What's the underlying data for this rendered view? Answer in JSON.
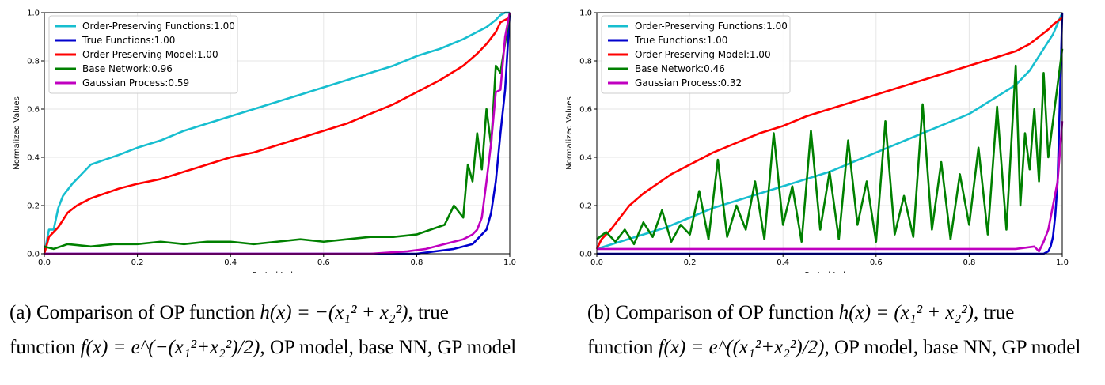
{
  "chart_data": [
    {
      "panel": "a",
      "type": "line",
      "xlabel": "Sorted Index",
      "ylabel": "Normalized Values",
      "xlim": [
        0,
        1
      ],
      "ylim": [
        0,
        1
      ],
      "xticks": [
        "0.0",
        "0.2",
        "0.4",
        "0.6",
        "0.8",
        "1.0"
      ],
      "yticks": [
        "0.0",
        "0.2",
        "0.4",
        "0.6",
        "0.8",
        "1.0"
      ],
      "grid": true,
      "legend_position": "top-left",
      "series": [
        {
          "name": "Order-Preserving Functions:1.00",
          "color": "#17becf",
          "x": [
            0,
            0.01,
            0.02,
            0.03,
            0.04,
            0.06,
            0.08,
            0.1,
            0.13,
            0.16,
            0.2,
            0.25,
            0.3,
            0.35,
            0.4,
            0.45,
            0.5,
            0.55,
            0.6,
            0.65,
            0.7,
            0.75,
            0.8,
            0.85,
            0.9,
            0.93,
            0.95,
            0.97,
            0.98,
            0.99,
            1.0
          ],
          "values": [
            0.0,
            0.1,
            0.1,
            0.19,
            0.24,
            0.29,
            0.33,
            0.37,
            0.39,
            0.41,
            0.44,
            0.47,
            0.51,
            0.54,
            0.57,
            0.6,
            0.63,
            0.66,
            0.69,
            0.72,
            0.75,
            0.78,
            0.82,
            0.85,
            0.89,
            0.92,
            0.94,
            0.97,
            0.99,
            1.0,
            1.0
          ]
        },
        {
          "name": "True Functions:1.00",
          "color": "#0000cd",
          "x": [
            0,
            0.1,
            0.3,
            0.5,
            0.7,
            0.8,
            0.88,
            0.92,
            0.95,
            0.96,
            0.97,
            0.98,
            0.99,
            1.0
          ],
          "values": [
            0.0,
            0.0,
            0.0,
            0.0,
            0.0,
            0.0,
            0.02,
            0.04,
            0.1,
            0.17,
            0.3,
            0.5,
            0.68,
            1.0
          ]
        },
        {
          "name": "Order-Preserving Model:1.00",
          "color": "#ff0000",
          "x": [
            0,
            0.01,
            0.02,
            0.03,
            0.05,
            0.07,
            0.1,
            0.13,
            0.16,
            0.2,
            0.25,
            0.3,
            0.35,
            0.4,
            0.45,
            0.5,
            0.55,
            0.6,
            0.65,
            0.7,
            0.75,
            0.8,
            0.85,
            0.9,
            0.93,
            0.95,
            0.97,
            0.98,
            1.0
          ],
          "values": [
            0.0,
            0.07,
            0.09,
            0.11,
            0.17,
            0.2,
            0.23,
            0.25,
            0.27,
            0.29,
            0.31,
            0.34,
            0.37,
            0.4,
            0.42,
            0.45,
            0.48,
            0.51,
            0.54,
            0.58,
            0.62,
            0.67,
            0.72,
            0.78,
            0.83,
            0.87,
            0.92,
            0.96,
            0.98
          ]
        },
        {
          "name": "Base Network:0.96",
          "color": "#008000",
          "x": [
            0,
            0.02,
            0.05,
            0.1,
            0.15,
            0.2,
            0.25,
            0.3,
            0.35,
            0.4,
            0.45,
            0.5,
            0.55,
            0.6,
            0.65,
            0.7,
            0.75,
            0.8,
            0.83,
            0.86,
            0.88,
            0.9,
            0.91,
            0.92,
            0.93,
            0.94,
            0.95,
            0.96,
            0.97,
            0.98,
            1.0
          ],
          "values": [
            0.03,
            0.02,
            0.04,
            0.03,
            0.04,
            0.04,
            0.05,
            0.04,
            0.05,
            0.05,
            0.04,
            0.05,
            0.06,
            0.05,
            0.06,
            0.07,
            0.07,
            0.08,
            0.1,
            0.12,
            0.2,
            0.15,
            0.37,
            0.3,
            0.5,
            0.35,
            0.6,
            0.45,
            0.78,
            0.75,
            1.0
          ]
        },
        {
          "name": "Gaussian Process:0.59",
          "color": "#c000c0",
          "x": [
            0,
            0.2,
            0.4,
            0.6,
            0.7,
            0.78,
            0.82,
            0.86,
            0.9,
            0.92,
            0.93,
            0.94,
            0.95,
            0.96,
            0.97,
            0.98,
            0.99,
            1.0
          ],
          "values": [
            0.0,
            0.0,
            0.0,
            0.0,
            0.0,
            0.01,
            0.02,
            0.04,
            0.06,
            0.08,
            0.1,
            0.15,
            0.3,
            0.46,
            0.67,
            0.68,
            0.9,
            1.0
          ]
        }
      ]
    },
    {
      "panel": "b",
      "type": "line",
      "xlabel": "Sorted Index",
      "ylabel": "Normalized Values",
      "xlim": [
        0,
        1
      ],
      "ylim": [
        0,
        1
      ],
      "xticks": [
        "0.0",
        "0.2",
        "0.4",
        "0.6",
        "0.8",
        "1.0"
      ],
      "yticks": [
        "0.0",
        "0.2",
        "0.4",
        "0.6",
        "0.8",
        "1.0"
      ],
      "grid": true,
      "legend_position": "top-left",
      "series": [
        {
          "name": "Order-Preserving Functions:1.00",
          "color": "#17becf",
          "x": [
            0,
            0.05,
            0.1,
            0.15,
            0.2,
            0.25,
            0.3,
            0.35,
            0.4,
            0.45,
            0.5,
            0.55,
            0.6,
            0.65,
            0.7,
            0.75,
            0.8,
            0.85,
            0.9,
            0.93,
            0.95,
            0.97,
            0.98,
            1.0
          ],
          "values": [
            0.02,
            0.05,
            0.08,
            0.11,
            0.15,
            0.19,
            0.22,
            0.25,
            0.28,
            0.31,
            0.34,
            0.38,
            0.42,
            0.46,
            0.5,
            0.54,
            0.58,
            0.64,
            0.7,
            0.76,
            0.82,
            0.88,
            0.91,
            1.0
          ]
        },
        {
          "name": "True Functions:1.00",
          "color": "#0000cd",
          "x": [
            0,
            0.2,
            0.4,
            0.6,
            0.8,
            0.9,
            0.95,
            0.96,
            0.97,
            0.975,
            0.98,
            0.985,
            0.99,
            1.0
          ],
          "values": [
            0.0,
            0.0,
            0.0,
            0.0,
            0.0,
            0.0,
            0.0,
            0.0,
            0.01,
            0.03,
            0.07,
            0.16,
            0.3,
            1.0
          ]
        },
        {
          "name": "Order-Preserving Model:1.00",
          "color": "#ff0000",
          "x": [
            0,
            0.01,
            0.02,
            0.03,
            0.05,
            0.07,
            0.1,
            0.13,
            0.16,
            0.2,
            0.25,
            0.3,
            0.35,
            0.4,
            0.45,
            0.5,
            0.55,
            0.6,
            0.65,
            0.7,
            0.75,
            0.8,
            0.85,
            0.9,
            0.93,
            0.95,
            0.97,
            0.98,
            1.0
          ],
          "values": [
            0.02,
            0.06,
            0.08,
            0.1,
            0.15,
            0.2,
            0.25,
            0.29,
            0.33,
            0.37,
            0.42,
            0.46,
            0.5,
            0.53,
            0.57,
            0.6,
            0.63,
            0.66,
            0.69,
            0.72,
            0.75,
            0.78,
            0.81,
            0.84,
            0.87,
            0.9,
            0.93,
            0.95,
            0.98
          ]
        },
        {
          "name": "Base Network:0.46",
          "color": "#008000",
          "x": [
            0,
            0.02,
            0.04,
            0.06,
            0.08,
            0.1,
            0.12,
            0.14,
            0.16,
            0.18,
            0.2,
            0.22,
            0.24,
            0.26,
            0.28,
            0.3,
            0.32,
            0.34,
            0.36,
            0.38,
            0.4,
            0.42,
            0.44,
            0.46,
            0.48,
            0.5,
            0.52,
            0.54,
            0.56,
            0.58,
            0.6,
            0.62,
            0.64,
            0.66,
            0.68,
            0.7,
            0.72,
            0.74,
            0.76,
            0.78,
            0.8,
            0.82,
            0.84,
            0.86,
            0.88,
            0.9,
            0.91,
            0.92,
            0.93,
            0.94,
            0.95,
            0.96,
            0.97,
            0.98,
            1.0
          ],
          "values": [
            0.06,
            0.09,
            0.05,
            0.1,
            0.04,
            0.13,
            0.07,
            0.18,
            0.05,
            0.12,
            0.08,
            0.26,
            0.06,
            0.39,
            0.07,
            0.2,
            0.1,
            0.3,
            0.06,
            0.5,
            0.12,
            0.28,
            0.05,
            0.51,
            0.1,
            0.34,
            0.06,
            0.47,
            0.12,
            0.3,
            0.05,
            0.55,
            0.08,
            0.24,
            0.07,
            0.62,
            0.1,
            0.38,
            0.06,
            0.33,
            0.12,
            0.44,
            0.08,
            0.61,
            0.1,
            0.78,
            0.2,
            0.5,
            0.35,
            0.6,
            0.3,
            0.75,
            0.4,
            0.55,
            0.85
          ]
        },
        {
          "name": "Gaussian Process:0.32",
          "color": "#c000c0",
          "x": [
            0,
            0.1,
            0.2,
            0.3,
            0.4,
            0.5,
            0.6,
            0.7,
            0.8,
            0.9,
            0.94,
            0.95,
            0.96,
            0.97,
            0.98,
            0.99,
            1.0
          ],
          "values": [
            0.02,
            0.02,
            0.02,
            0.02,
            0.02,
            0.02,
            0.02,
            0.02,
            0.02,
            0.02,
            0.03,
            0.01,
            0.05,
            0.1,
            0.2,
            0.3,
            0.55
          ]
        }
      ]
    }
  ],
  "captions": {
    "a": {
      "line1_prefix": "(a) Comparison of OP function ",
      "line1_math": "h(x) = −(x₁² + x₂²)",
      "line1_suffix": ", true",
      "line2_prefix": "function ",
      "line2_math": "f(x) = e^(−(x₁²+x₂²)/2)",
      "line2_suffix": ", OP model, base NN, GP model"
    },
    "b": {
      "line1_prefix": "(b) Comparison of OP function ",
      "line1_math": "h(x) = (x₁² + x₂²)",
      "line1_suffix": ", true",
      "line2_prefix": "function ",
      "line2_math": "f(x) = e^((x₁²+x₂²)/2)",
      "line2_suffix": ", OP model, base NN, GP model"
    }
  }
}
